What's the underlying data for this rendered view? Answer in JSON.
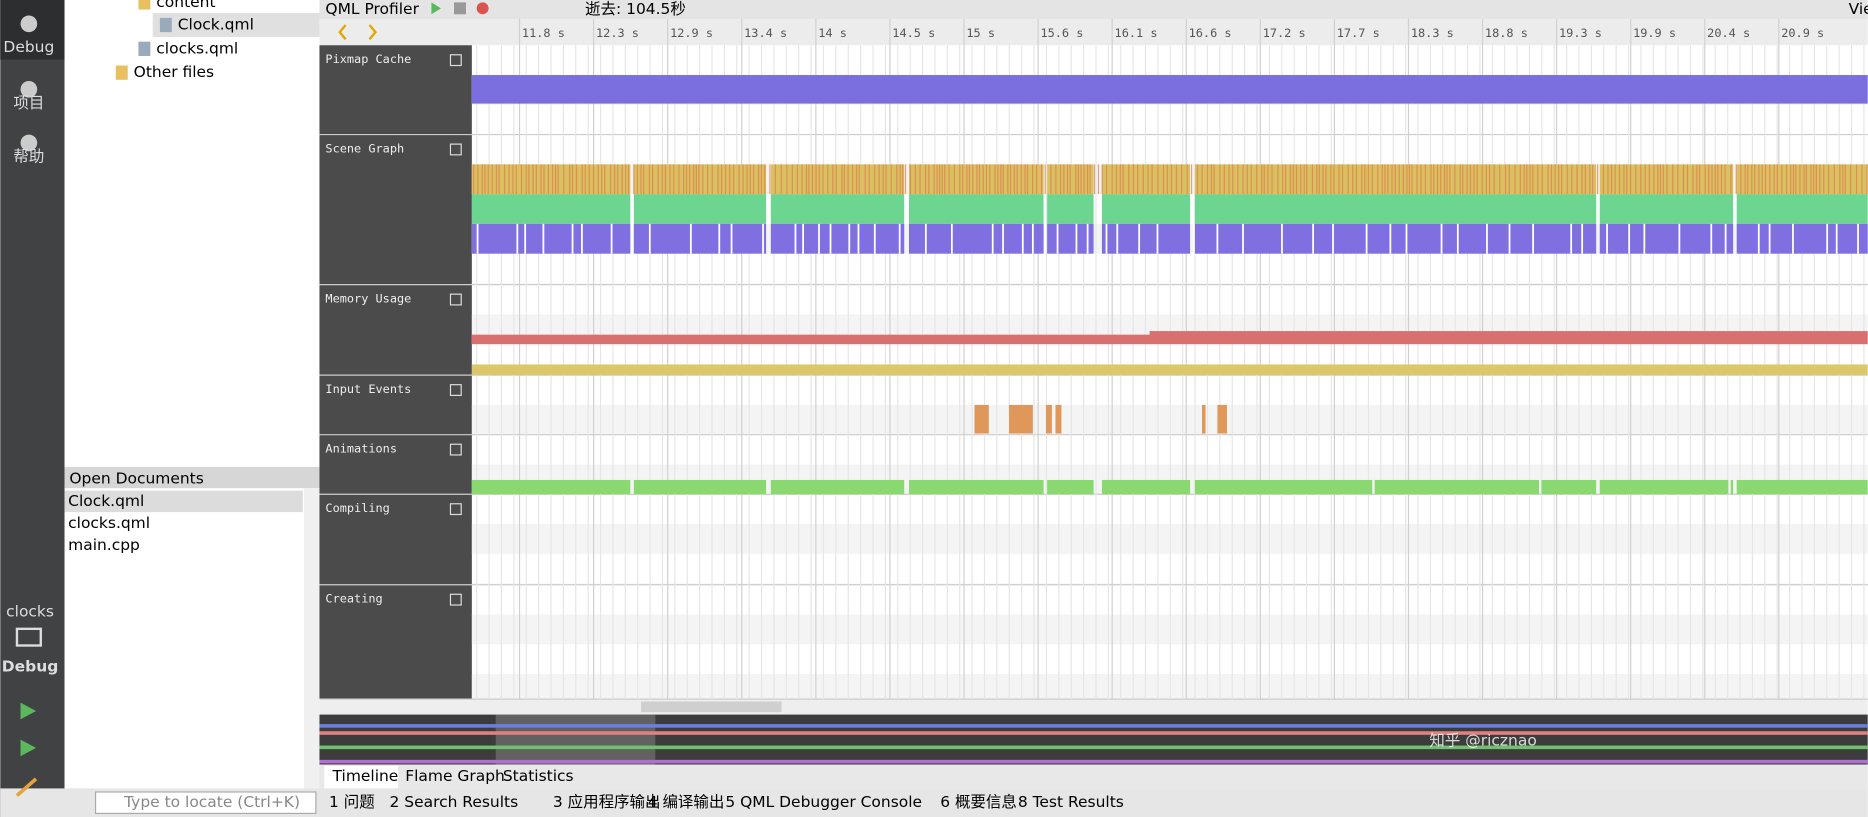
{
  "sidebar": {
    "modes": [
      "Debug",
      "项目",
      "帮助"
    ],
    "project": "clocks",
    "kit": "Debug"
  },
  "file_tree": {
    "items": [
      "content",
      "Clock.qml",
      "clocks.qml",
      "Other files"
    ]
  },
  "open_documents": {
    "title": "Open Documents",
    "items": [
      "Clock.qml",
      "clocks.qml",
      "main.cpp"
    ]
  },
  "profiler": {
    "title": "QML Profiler",
    "elapsed": "逝去: 104.5秒",
    "view": "Vie",
    "ruler": [
      "11.8 s",
      "12.3 s",
      "12.9 s",
      "13.4 s",
      "14 s",
      "14.5 s",
      "15 s",
      "15.6 s",
      "16.1 s",
      "16.6 s",
      "17.2 s",
      "17.7 s",
      "18.3 s",
      "18.8 s",
      "19.3 s",
      "19.9 s",
      "20.4 s",
      "20.9 s"
    ],
    "tracks": [
      "Pixmap Cache",
      "Scene Graph",
      "Memory Usage",
      "Input Events",
      "Animations",
      "Compiling",
      "Creating"
    ]
  },
  "bottom_tabs": [
    "Timeline",
    "Flame Graph",
    "Statistics"
  ],
  "locator": "Type to locate (Ctrl+K)",
  "output_panes": [
    "1 问题",
    "2 Search Results",
    "3 应用程序输出",
    "4 编译输出",
    "5 QML Debugger Console",
    "6 概要信息",
    "8 Test Results"
  ],
  "watermark": "知乎 @ricznao"
}
